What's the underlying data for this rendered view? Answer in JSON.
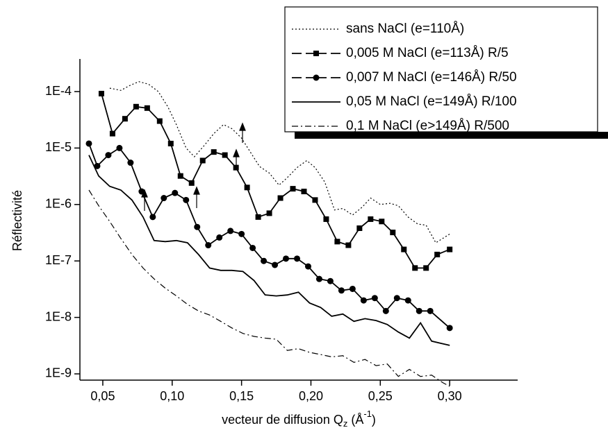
{
  "chart_data": {
    "type": "line",
    "x_label": {
      "text": "vecteur de diffusion Q",
      "sub": "z",
      "open": " (Å",
      "sup": "-1",
      "close": ")"
    },
    "y_label": "Réflectivité",
    "ylog": true,
    "xlim": [
      0.0335,
      0.349
    ],
    "ylim": [
      7.75e-10,
      0.000378
    ],
    "xticks": [
      {
        "value": 0.05,
        "label": "0,05"
      },
      {
        "value": 0.1,
        "label": "0,10"
      },
      {
        "value": 0.15,
        "label": "0,15"
      },
      {
        "value": 0.2,
        "label": "0,20"
      },
      {
        "value": 0.25,
        "label": "0,25"
      },
      {
        "value": 0.3,
        "label": "0,30"
      }
    ],
    "yticks": [
      {
        "value": 1e-09,
        "label": "1E-9"
      },
      {
        "value": 1e-08,
        "label": "1E-8"
      },
      {
        "value": 1e-07,
        "label": "1E-7"
      },
      {
        "value": 1e-06,
        "label": "1E-6"
      },
      {
        "value": 1e-05,
        "label": "1E-5"
      },
      {
        "value": 0.0001,
        "label": "1E-4"
      }
    ],
    "legend": "top-right",
    "series": [
      {
        "name": "sans NaCl (e=110Å)",
        "color": "#000000",
        "line": "dot",
        "marker": null,
        "x": [
          0.055,
          0.063,
          0.07,
          0.076,
          0.083,
          0.09,
          0.097,
          0.103,
          0.11,
          0.116,
          0.123,
          0.13,
          0.137,
          0.143,
          0.15,
          0.157,
          0.163,
          0.17,
          0.177,
          0.183,
          0.19,
          0.197,
          0.203,
          0.21,
          0.217,
          0.223,
          0.23,
          0.237,
          0.243,
          0.25,
          0.257,
          0.263,
          0.27,
          0.277,
          0.283,
          0.29,
          0.3
        ],
        "values": [
          0.000115,
          0.000105,
          0.00013,
          0.00015,
          0.000135,
          0.0001,
          5.3e-05,
          2.6e-05,
          1e-05,
          7e-06,
          1.1e-05,
          1.8e-05,
          2.6e-05,
          2.2e-05,
          1.5e-05,
          8e-06,
          4.7e-06,
          3.6e-06,
          2.2e-06,
          3e-06,
          4.5e-06,
          6e-06,
          4.5e-06,
          2.5e-06,
          8e-07,
          8.5e-07,
          6.5e-07,
          9e-07,
          1.3e-06,
          1e-06,
          1.05e-06,
          9.5e-07,
          6e-07,
          4.5e-07,
          4.3e-07,
          2.1e-07,
          3e-07
        ]
      },
      {
        "name": "0,005 M NaCl (e=113Å) R/5",
        "color": "#000000",
        "line": "solid",
        "marker": "square",
        "x": [
          0.049,
          0.057,
          0.066,
          0.074,
          0.082,
          0.091,
          0.099,
          0.106,
          0.114,
          0.122,
          0.13,
          0.138,
          0.146,
          0.154,
          0.162,
          0.17,
          0.178,
          0.187,
          0.195,
          0.203,
          0.211,
          0.219,
          0.227,
          0.235,
          0.243,
          0.251,
          0.259,
          0.267,
          0.275,
          0.283,
          0.291,
          0.3
        ],
        "values": [
          9.2e-05,
          1.8e-05,
          3.3e-05,
          5.4e-05,
          5.1e-05,
          3e-05,
          1.2e-05,
          3.2e-06,
          2.4e-06,
          6e-06,
          8.5e-06,
          7.5e-06,
          4.5e-06,
          2e-06,
          6e-07,
          7e-07,
          1.3e-06,
          1.9e-06,
          1.7e-06,
          1.2e-06,
          5.5e-07,
          2.2e-07,
          1.9e-07,
          3.8e-07,
          5.5e-07,
          5e-07,
          3.2e-07,
          1.6e-07,
          7.5e-08,
          7.5e-08,
          1.3e-07,
          1.6e-07
        ]
      },
      {
        "name": "0,007 M NaCl (e=146Å) R/50",
        "color": "#000000",
        "line": "solid",
        "marker": "circle",
        "x": [
          0.04,
          0.046,
          0.054,
          0.062,
          0.07,
          0.078,
          0.086,
          0.094,
          0.102,
          0.11,
          0.118,
          0.126,
          0.134,
          0.142,
          0.15,
          0.158,
          0.166,
          0.174,
          0.182,
          0.19,
          0.198,
          0.206,
          0.214,
          0.222,
          0.23,
          0.238,
          0.246,
          0.254,
          0.262,
          0.27,
          0.278,
          0.286,
          0.3
        ],
        "values": [
          1.2e-05,
          4.8e-06,
          7.5e-06,
          1e-05,
          5.5e-06,
          1.7e-06,
          6e-07,
          1.3e-06,
          1.6e-06,
          1.2e-06,
          4e-07,
          1.9e-07,
          2.6e-07,
          3.4e-07,
          3e-07,
          1.7e-07,
          1e-07,
          8.5e-08,
          1.1e-07,
          1.1e-07,
          8e-08,
          4.8e-08,
          4.4e-08,
          3e-08,
          3.2e-08,
          2e-08,
          2.2e-08,
          1.3e-08,
          2.2e-08,
          2e-08,
          1.3e-08,
          1.3e-08,
          6.5e-09
        ]
      },
      {
        "name": "0,05 M NaCl (e=149Å) R/100",
        "color": "#000000",
        "line": "solid",
        "marker": null,
        "x": [
          0.04,
          0.047,
          0.055,
          0.063,
          0.071,
          0.079,
          0.087,
          0.095,
          0.103,
          0.111,
          0.119,
          0.127,
          0.135,
          0.143,
          0.151,
          0.159,
          0.167,
          0.175,
          0.183,
          0.191,
          0.199,
          0.207,
          0.215,
          0.223,
          0.231,
          0.239,
          0.247,
          0.255,
          0.263,
          0.271,
          0.279,
          0.287,
          0.3
        ],
        "values": [
          7.5e-06,
          3.2e-06,
          2.1e-06,
          1.8e-06,
          1.2e-06,
          6e-07,
          2.3e-07,
          2.2e-07,
          2.3e-07,
          2.1e-07,
          1.3e-07,
          7.5e-08,
          6.8e-08,
          6.8e-08,
          6.5e-08,
          4.5e-08,
          2.5e-08,
          2.4e-08,
          2.5e-08,
          2.8e-08,
          1.8e-08,
          1.5e-08,
          1.05e-08,
          1.15e-08,
          8.5e-09,
          9.5e-09,
          8.8e-09,
          7.5e-09,
          5.5e-09,
          4.3e-09,
          8e-09,
          3.8e-09,
          3.2e-09
        ]
      },
      {
        "name": "0,1 M NaCl (e>149Å) R/500",
        "color": "#000000",
        "line": "dashdot",
        "marker": null,
        "x": [
          0.04,
          0.047,
          0.055,
          0.063,
          0.071,
          0.079,
          0.087,
          0.095,
          0.103,
          0.111,
          0.119,
          0.127,
          0.135,
          0.143,
          0.151,
          0.159,
          0.167,
          0.175,
          0.183,
          0.191,
          0.199,
          0.207,
          0.215,
          0.223,
          0.231,
          0.239,
          0.247,
          0.255,
          0.263,
          0.271,
          0.279,
          0.287,
          0.295,
          0.3
        ],
        "values": [
          1.8e-06,
          9.5e-07,
          5e-07,
          2.5e-07,
          1.3e-07,
          7.5e-08,
          4.8e-08,
          3.3e-08,
          2.4e-08,
          1.7e-08,
          1.3e-08,
          1.1e-08,
          8.5e-09,
          6.5e-09,
          5.2e-09,
          4.6e-09,
          4.3e-09,
          4.1e-09,
          2.6e-09,
          2.8e-09,
          2.4e-09,
          2.2e-09,
          2e-09,
          2.1e-09,
          1.6e-09,
          1.8e-09,
          1.4e-09,
          1.5e-09,
          9e-10,
          1.2e-09,
          9e-10,
          9.5e-10,
          7e-10,
          6e-10
        ]
      }
    ]
  }
}
